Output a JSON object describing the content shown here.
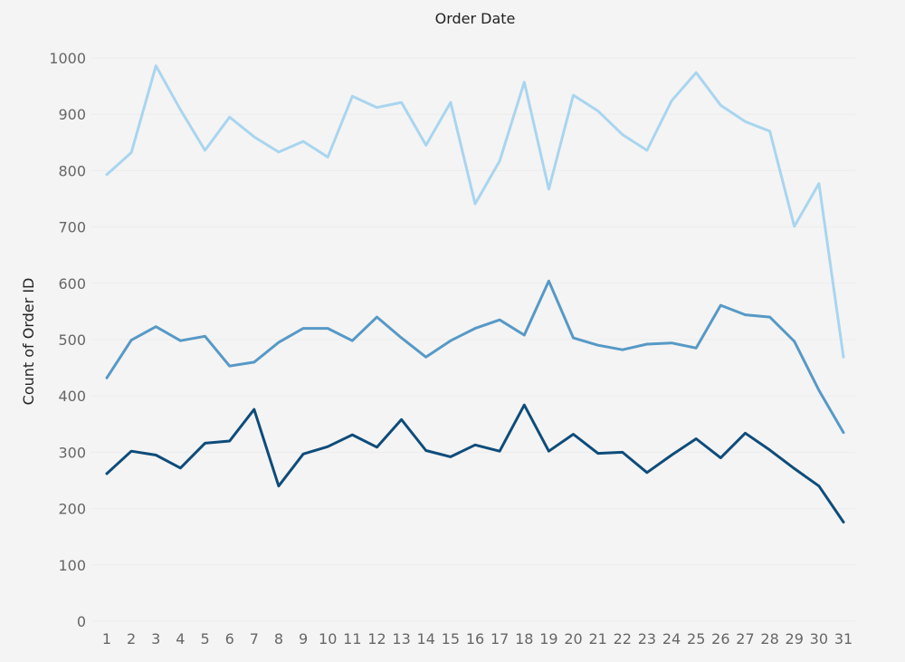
{
  "chart_data": {
    "type": "line",
    "title": "Order Date",
    "xlabel": "",
    "ylabel": "Count of Order ID",
    "x": [
      1,
      2,
      3,
      4,
      5,
      6,
      7,
      8,
      9,
      10,
      11,
      12,
      13,
      14,
      15,
      16,
      17,
      18,
      19,
      20,
      21,
      22,
      23,
      24,
      25,
      26,
      27,
      28,
      29,
      30,
      31
    ],
    "xlim": [
      1,
      31
    ],
    "ylim": [
      0,
      1000
    ],
    "yticks": [
      0,
      100,
      200,
      300,
      400,
      500,
      600,
      700,
      800,
      900,
      1000
    ],
    "grid": true,
    "legend": "none",
    "series": [
      {
        "color": "#a9d5ef",
        "values": [
          793,
          832,
          986,
          908,
          836,
          895,
          860,
          833,
          852,
          824,
          932,
          912,
          921,
          845,
          921,
          741,
          817,
          957,
          767,
          934,
          906,
          864,
          836,
          924,
          974,
          916,
          887,
          870,
          701,
          777,
          469
        ]
      },
      {
        "color": "#5799c6",
        "values": [
          432,
          499,
          523,
          498,
          506,
          453,
          460,
          495,
          520,
          520,
          498,
          540,
          503,
          469,
          498,
          520,
          535,
          508,
          604,
          503,
          490,
          482,
          492,
          494,
          485,
          561,
          544,
          540,
          497,
          410,
          335
        ]
      },
      {
        "color": "#0e4c7a",
        "values": [
          262,
          302,
          295,
          272,
          316,
          320,
          376,
          240,
          297,
          310,
          331,
          309,
          358,
          303,
          292,
          313,
          302,
          384,
          302,
          332,
          298,
          300,
          264,
          295,
          324,
          290,
          334,
          304,
          271,
          240,
          176
        ]
      }
    ]
  }
}
